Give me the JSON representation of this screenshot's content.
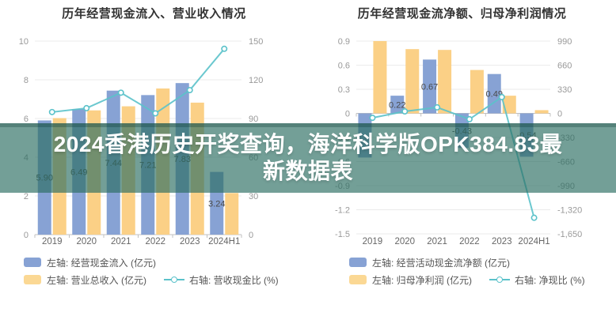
{
  "banner": {
    "text": "2024香港历史开奖查询，海洋科学版OPK384.83最新数据表",
    "lines": [
      "2024香港历史开奖查询，海洋科学版OPK384.83最",
      "新数据表"
    ],
    "overlay_color": "#2b6d61",
    "text_color": "#ffffff"
  },
  "chart_data": [
    {
      "type": "bar",
      "title": "历年经营现金流入、营业收入情况",
      "categories": [
        "2019",
        "2020",
        "2021",
        "2022",
        "2023",
        "2024H1"
      ],
      "legend_position": "bottom-left",
      "grid": true,
      "left_axis": {
        "min": 0,
        "max": 10,
        "tick_values": [
          10,
          8,
          6,
          4,
          2,
          0
        ],
        "tick_labels": [
          "10",
          "8",
          "6",
          "4",
          "2",
          "0"
        ]
      },
      "right_axis": {
        "min": 0,
        "max": 150,
        "tick_values": [
          150,
          120,
          90,
          60,
          30,
          0
        ],
        "tick_labels": [
          "150",
          "120",
          "90",
          "60",
          "30",
          "0"
        ]
      },
      "series": [
        {
          "name": "经营现金流入",
          "legend_label": "左轴: 经营现金流入 (亿元)",
          "kind": "bar",
          "axis": "left",
          "color": "#87a2d4",
          "values": [
            5.9,
            6.49,
            7.44,
            7.21,
            7.83,
            3.24
          ],
          "labels": [
            "5.90",
            "6.49",
            "7.44",
            "7.21",
            "7.83",
            "3.24"
          ]
        },
        {
          "name": "营业总收入",
          "legend_label": "左轴: 营业总收入 (亿元)",
          "kind": "bar",
          "axis": "left",
          "color": "#fbd086",
          "values": [
            6.02,
            6.42,
            6.63,
            7.55,
            6.82,
            2.15
          ],
          "labels": [
            "",
            "",
            "",
            "",
            "",
            ""
          ]
        },
        {
          "name": "营收现金比",
          "legend_label": "右轴: 营收现金比 (%)",
          "kind": "line",
          "axis": "right",
          "color": "#5bc2ca",
          "values": [
            95,
            98,
            110,
            94,
            112,
            144
          ],
          "labels": [
            "",
            "",
            "",
            "",
            "",
            ""
          ]
        }
      ]
    },
    {
      "type": "bar",
      "title": "历年经营现金流净额、归母净利润情况",
      "categories": [
        "2019",
        "2020",
        "2021",
        "2022",
        "2023",
        "2024H1"
      ],
      "legend_position": "bottom-left",
      "grid": true,
      "left_axis": {
        "min": -1.5,
        "max": 0.9,
        "tick_values": [
          0.9,
          0.6,
          0.3,
          0,
          -0.3,
          -0.6,
          -0.9,
          -1.2,
          -1.5
        ],
        "tick_labels": [
          "0.9",
          "0.6",
          "0.3",
          "0",
          "-0.3",
          "-0.6",
          "-0.9",
          "-1.2",
          "-1.5"
        ]
      },
      "right_axis": {
        "min": -1650,
        "max": 990,
        "tick_values": [
          990,
          660,
          330,
          0,
          -330,
          -660,
          -990,
          -1320,
          -1650
        ],
        "tick_labels": [
          "990",
          "660",
          "330",
          "0",
          "-330",
          "-660",
          "-990",
          "-1,320",
          "-1,650"
        ]
      },
      "series": [
        {
          "name": "经营活动现金流净额",
          "legend_label": "左轴: 经营活动现金流净额 (亿元)",
          "kind": "bar",
          "axis": "left",
          "color": "#87a2d4",
          "values": [
            -0.55,
            0.22,
            0.67,
            -0.43,
            0.49,
            -0.54
          ],
          "labels": [
            "",
            "0.22",
            "0.67",
            "-0.43",
            "0.49",
            "-0.54"
          ]
        },
        {
          "name": "归母净利润",
          "legend_label": "左轴: 归母净利润 (亿元)",
          "kind": "bar",
          "axis": "left",
          "color": "#fbd086",
          "values": [
            0.9,
            0.8,
            0.79,
            0.54,
            0.22,
            0.04
          ],
          "labels": [
            "",
            "",
            "",
            "",
            "",
            ""
          ]
        },
        {
          "name": "净现比",
          "legend_label": "右轴: 净现比 (%)",
          "kind": "line",
          "axis": "right",
          "color": "#5bc2ca",
          "values": [
            -61,
            27,
            82,
            -80,
            223,
            -1430
          ],
          "labels": [
            "",
            "",
            "",
            "",
            "",
            ""
          ]
        }
      ]
    }
  ]
}
